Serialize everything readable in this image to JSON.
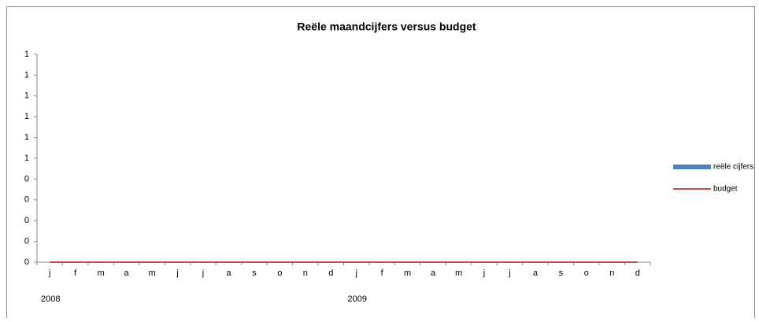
{
  "chart_data": {
    "type": "bar_line",
    "title": "Reële maandcijfers versus budget",
    "categories": [
      "j",
      "f",
      "m",
      "a",
      "m",
      "j",
      "j",
      "a",
      "s",
      "o",
      "n",
      "d",
      "j",
      "f",
      "m",
      "a",
      "m",
      "j",
      "j",
      "a",
      "s",
      "o",
      "n",
      "d"
    ],
    "years": [
      "2008",
      "2009"
    ],
    "series": [
      {
        "name": "reële cijfers",
        "type": "bar",
        "color": "#4f81bd",
        "values": [
          0,
          0,
          0,
          0,
          0,
          0,
          0,
          0,
          0,
          0,
          0,
          0,
          0,
          0,
          0,
          0,
          0,
          0,
          0,
          0,
          0,
          0,
          0,
          0
        ]
      },
      {
        "name": "budget",
        "type": "line",
        "color": "#c0504d",
        "values": [
          0,
          0,
          0,
          0,
          0,
          0,
          0,
          0,
          0,
          0,
          0,
          0,
          0,
          0,
          0,
          0,
          0,
          0,
          0,
          0,
          0,
          0,
          0,
          0
        ]
      }
    ],
    "ylim": [
      0,
      1
    ],
    "yticks": [
      0,
      {
        "value": 0.1,
        "label": "0"
      },
      {
        "value": 0.2,
        "label": "0"
      },
      {
        "value": 0.3,
        "label": "0"
      },
      {
        "value": 0.4,
        "label": "0"
      },
      {
        "value": 0.5,
        "label": "1"
      },
      {
        "value": 0.6,
        "label": "1"
      },
      {
        "value": 0.7,
        "label": "1"
      },
      {
        "value": 0.8,
        "label": "1"
      },
      {
        "value": 0.9,
        "label": "1"
      },
      1
    ],
    "legend": "right"
  }
}
